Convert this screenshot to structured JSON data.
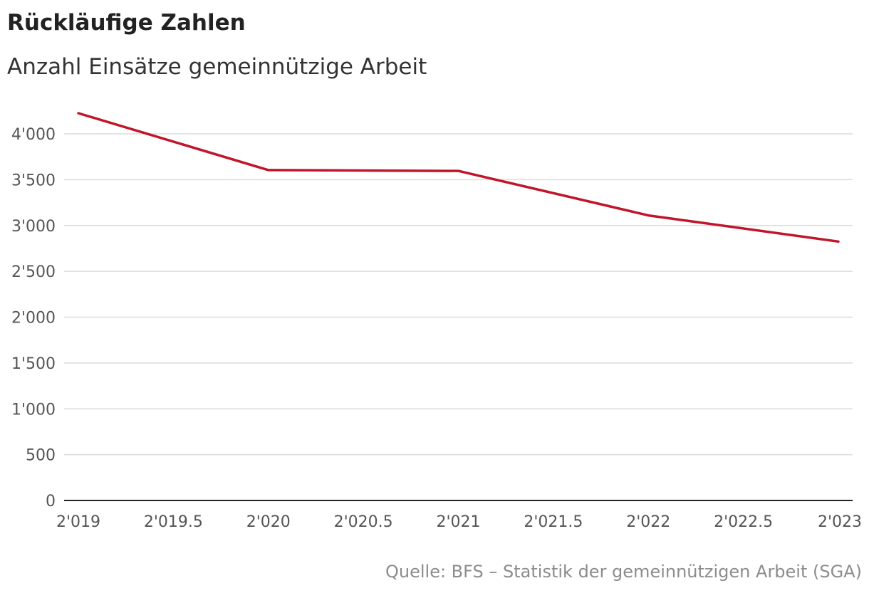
{
  "chart_data": {
    "type": "line",
    "title": "Rückläufige Zahlen",
    "subtitle": "Anzahl Einsätze gemeinnützige Arbeit",
    "source": "Quelle: BFS – Statistik der gemeinnützigen Arbeit (SGA)",
    "xlim": [
      2019,
      2023
    ],
    "ylim": [
      0,
      4000
    ],
    "x_ticks": [
      2019,
      2019.5,
      2020,
      2020.5,
      2021,
      2021.5,
      2022,
      2022.5,
      2023
    ],
    "x_tick_labels": [
      "2'019",
      "2'019.5",
      "2'020",
      "2'020.5",
      "2'021",
      "2'021.5",
      "2'022",
      "2'022.5",
      "2'023"
    ],
    "y_ticks": [
      0,
      500,
      1000,
      1500,
      2000,
      2500,
      3000,
      3500,
      4000
    ],
    "y_tick_labels": [
      "0",
      "500",
      "1'000",
      "1'500",
      "2'000",
      "2'500",
      "3'000",
      "3'500",
      "4'000"
    ],
    "grid": true,
    "series": [
      {
        "color": "#c0152a",
        "x": [
          2019,
          2020,
          2021,
          2022,
          2023
        ],
        "y": [
          4225,
          3605,
          3595,
          3110,
          2825
        ]
      }
    ]
  }
}
